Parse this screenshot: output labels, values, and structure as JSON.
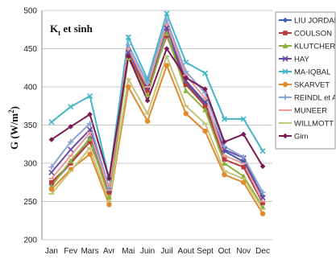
{
  "chart_data": {
    "type": "line",
    "title": "Kt et sinh",
    "title_main": "K",
    "title_sub": "t",
    "title_rest": " et sinh",
    "ylabel": "G (W/m",
    "ylabel_sup": "2",
    "ylabel_end": ")",
    "ylim": [
      200,
      500
    ],
    "yticks": [
      "200",
      "250",
      "300",
      "350",
      "400",
      "450",
      "500"
    ],
    "categories": [
      "Jan",
      "Fev",
      "Mars",
      "Avr",
      "Mai",
      "Juin",
      "Juil",
      "Aout",
      "Sept",
      "Oct",
      "Nov",
      "Dec"
    ],
    "grid": "horizontal",
    "legend": "right",
    "series": [
      {
        "name": "LIU JORDAN",
        "color": "#3b5fa8",
        "marker": "diamond",
        "values": [
          272,
          300,
          333,
          262,
          440,
          396,
          469,
          405,
          378,
          316,
          302,
          257
        ]
      },
      {
        "name": "COULSON",
        "color": "#b83a3a",
        "marker": "square",
        "values": [
          275,
          300,
          328,
          262,
          440,
          395,
          467,
          403,
          375,
          305,
          295,
          248
        ]
      },
      {
        "name": "KLUTCHER",
        "color": "#8fb03a",
        "marker": "triangle",
        "values": [
          270,
          303,
          332,
          256,
          438,
          390,
          470,
          395,
          370,
          300,
          283,
          243
        ]
      },
      {
        "name": "HAY",
        "color": "#6a4a9e",
        "marker": "x",
        "values": [
          288,
          318,
          344,
          265,
          445,
          400,
          477,
          408,
          380,
          318,
          307,
          255
        ]
      },
      {
        "name": "MA-IQBAL",
        "color": "#46b5c8",
        "marker": "x",
        "values": [
          354,
          374,
          388,
          280,
          465,
          410,
          496,
          432,
          418,
          358,
          358,
          316
        ]
      },
      {
        "name": "SKARVET",
        "color": "#e08a2c",
        "marker": "circle",
        "values": [
          266,
          292,
          312,
          246,
          400,
          355,
          428,
          365,
          342,
          285,
          275,
          234
        ]
      },
      {
        "name": "REINDL et A",
        "color": "#8aa4d8",
        "marker": "plus",
        "values": [
          295,
          328,
          352,
          268,
          455,
          405,
          487,
          420,
          392,
          322,
          308,
          262
        ]
      },
      {
        "name": "MUNEER",
        "color": "#e89a9a",
        "marker": "dash",
        "values": [
          280,
          310,
          340,
          265,
          450,
          400,
          482,
          415,
          385,
          310,
          300,
          250
        ]
      },
      {
        "name": "WILLMOTT",
        "color": "#c4c47a",
        "marker": "dash",
        "values": [
          260,
          290,
          320,
          250,
          410,
          365,
          440,
          375,
          352,
          290,
          280,
          240
        ]
      },
      {
        "name": "Gim",
        "color": "#7a1c52",
        "marker": "diamond",
        "values": [
          331,
          348,
          364,
          280,
          440,
          382,
          450,
          412,
          397,
          328,
          338,
          296
        ]
      }
    ]
  }
}
